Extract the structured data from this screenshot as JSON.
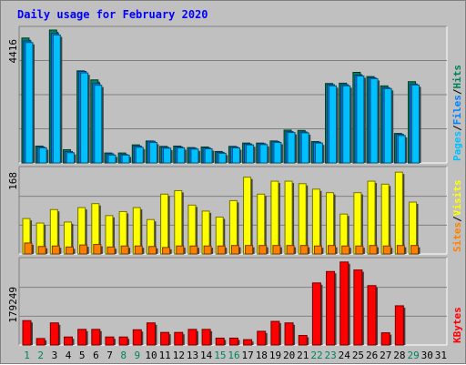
{
  "chart_data": {
    "type": "bar",
    "title": "Daily usage for February 2020",
    "colors": {
      "pages": "#00c0ff",
      "files": "#0080ff",
      "hits": "#00805c",
      "visits": "#ffff00",
      "sites": "#ff8000",
      "kbytes": "#ff0000",
      "title": "#0000ff",
      "weekend_label": "#00805c"
    },
    "sidebars": {
      "top": [
        {
          "text": "Pages",
          "color": "#00c0ff"
        },
        {
          "text": "/",
          "color": "#000000"
        },
        {
          "text": "Files",
          "color": "#0080ff"
        },
        {
          "text": "/",
          "color": "#000000"
        },
        {
          "text": "Hits",
          "color": "#00805c"
        }
      ],
      "middle": [
        {
          "text": "Sites",
          "color": "#ff8000"
        },
        {
          "text": "/",
          "color": "#000000"
        },
        {
          "text": "Visits",
          "color": "#ffff00"
        }
      ],
      "bottom": [
        {
          "text": "KBytes",
          "color": "#ff0000"
        }
      ]
    },
    "categories": [
      "1",
      "2",
      "3",
      "4",
      "5",
      "6",
      "7",
      "8",
      "9",
      "10",
      "11",
      "12",
      "13",
      "14",
      "15",
      "16",
      "17",
      "18",
      "19",
      "20",
      "21",
      "22",
      "23",
      "24",
      "25",
      "26",
      "27",
      "28",
      "29",
      "30",
      "31"
    ],
    "weekend_days": [
      "1",
      "2",
      "8",
      "9",
      "15",
      "16",
      "22",
      "23",
      "29"
    ],
    "panels": [
      {
        "id": "top",
        "ytick": "4416",
        "ymax": 4416,
        "series": [
          {
            "name": "Hits",
            "values": [
              4150,
              560,
              4416,
              440,
              3060,
              2760,
              330,
              330,
              600,
              730,
              550,
              560,
              510,
              530,
              380,
              550,
              660,
              660,
              730,
              1090,
              1080,
              710,
              2640,
              2650,
              3010,
              2870,
              2560,
              980,
              2700,
              null,
              null
            ]
          },
          {
            "name": "Files",
            "values": [
              4050,
              530,
              4300,
              380,
              3040,
              2640,
              300,
              280,
              560,
              720,
              520,
              530,
              490,
              500,
              350,
              530,
              630,
              640,
              710,
              1040,
              1030,
              690,
              2600,
              2600,
              2920,
              2830,
              2500,
              950,
              2610,
              null,
              null
            ]
          },
          {
            "name": "Pages",
            "values": [
              4000,
              500,
              4250,
              340,
              2990,
              2580,
              260,
              260,
              520,
              680,
              490,
              500,
              460,
              470,
              320,
              500,
              600,
              610,
              680,
              1010,
              1000,
              660,
              2560,
              2560,
              2890,
              2800,
              2470,
              910,
              2590,
              null,
              null
            ]
          }
        ]
      },
      {
        "id": "middle",
        "ytick": "168",
        "ymax": 168,
        "series": [
          {
            "name": "Visits",
            "values": [
              71,
              62,
              89,
              64,
              93,
              101,
              77,
              85,
              93,
              69,
              120,
              127,
              98,
              86,
              74,
              107,
              154,
              120,
              146,
              146,
              141,
              130,
              123,
              80,
              123,
              146,
              140,
              164,
              104,
              null,
              null
            ]
          },
          {
            "name": "Sites",
            "values": [
              22,
              15,
              16,
              14,
              18,
              19,
              14,
              16,
              16,
              15,
              13,
              16,
              16,
              16,
              16,
              17,
              17,
              17,
              17,
              17,
              17,
              16,
              17,
              16,
              16,
              17,
              16,
              17,
              17,
              null,
              null
            ]
          }
        ]
      },
      {
        "id": "bottom",
        "ytick": "179249",
        "ymax": 220000,
        "series": [
          {
            "name": "KBytes",
            "values": [
              64000,
              17000,
              58000,
              21000,
              41000,
              41000,
              21000,
              21000,
              40000,
              58000,
              33000,
              33000,
              41000,
              41000,
              18000,
              18000,
              14000,
              36000,
              62000,
              58000,
              25000,
              163000,
              193000,
              218000,
              197000,
              156000,
              32000,
              103000,
              null,
              null,
              null
            ]
          }
        ]
      }
    ]
  }
}
